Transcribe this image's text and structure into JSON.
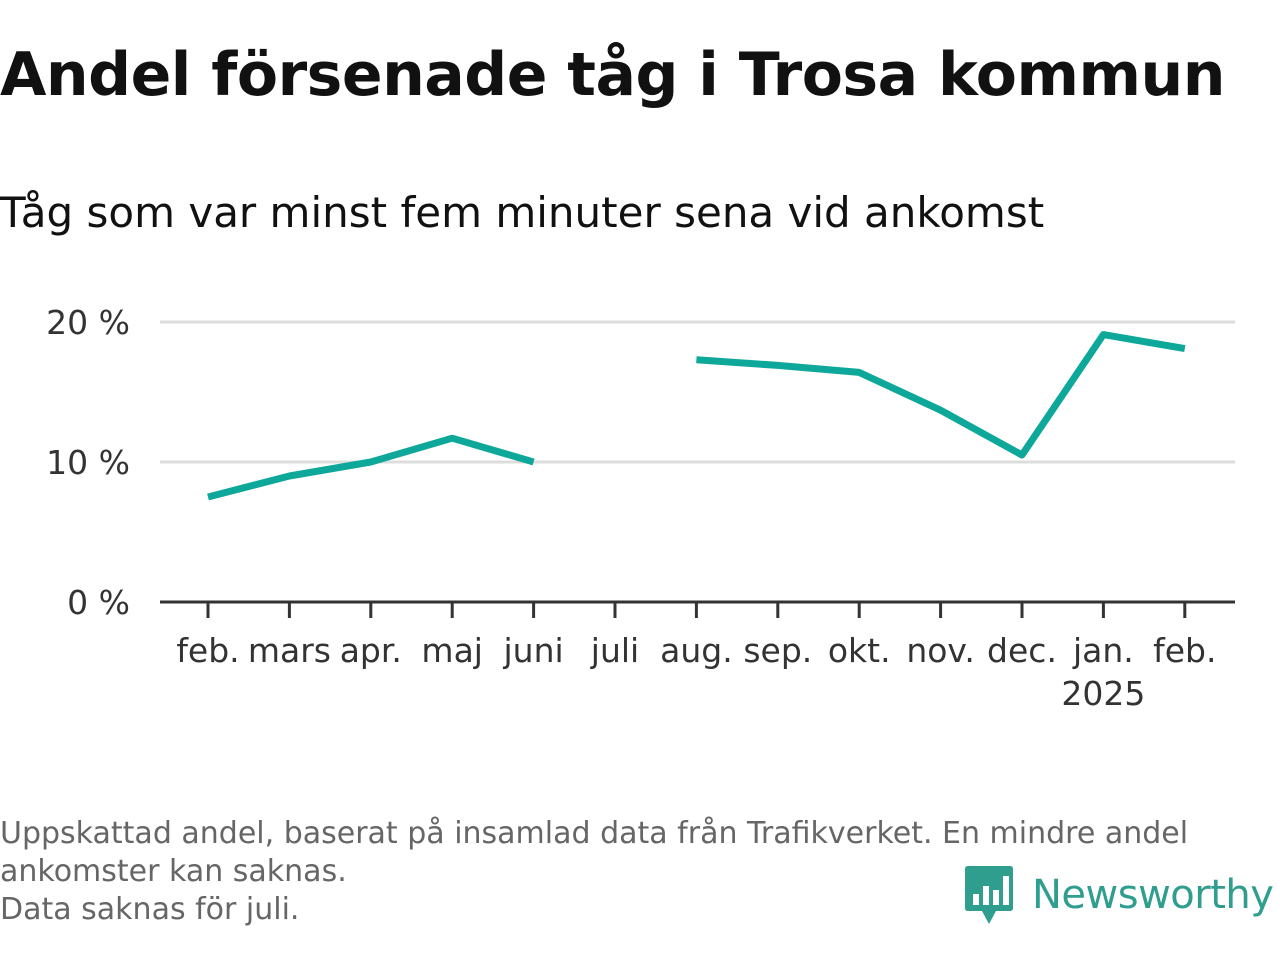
{
  "title": "Andel försenade tåg i Trosa kommun",
  "subtitle": "Tåg som var minst fem minuter sena vid ankomst",
  "footnote": [
    "Uppskattad andel, baserat på insamlad data från Trafikverket. En mindre andel",
    "ankomster kan saknas.",
    "Data saknas för juli."
  ],
  "brand": {
    "name": "Newsworthy",
    "color": "#2f9e8f",
    "icon": "newsworthy-bar-chart-icon"
  },
  "colors": {
    "line": "#0ea89a",
    "grid": "#dddddd",
    "axis": "#333333"
  },
  "chart_data": {
    "type": "line",
    "categories": [
      "feb.",
      "mars",
      "apr.",
      "maj",
      "juni",
      "juli",
      "aug.",
      "sep.",
      "okt.",
      "nov.",
      "dec.",
      "jan.",
      "feb."
    ],
    "category_sublabels": [
      "",
      "",
      "",
      "",
      "",
      "",
      "",
      "",
      "",
      "",
      "",
      "2025",
      ""
    ],
    "series": [
      {
        "values": [
          7.5,
          9.0,
          10.0,
          11.7,
          10.0,
          null,
          17.3,
          16.9,
          16.4,
          13.7,
          10.5,
          19.1,
          18.1
        ]
      }
    ],
    "y_ticks": [
      0,
      10,
      20
    ],
    "y_tick_labels": [
      "0 %",
      "10 %",
      "20 %"
    ],
    "ylim": [
      0,
      20
    ],
    "grid": true,
    "legend": "none"
  }
}
